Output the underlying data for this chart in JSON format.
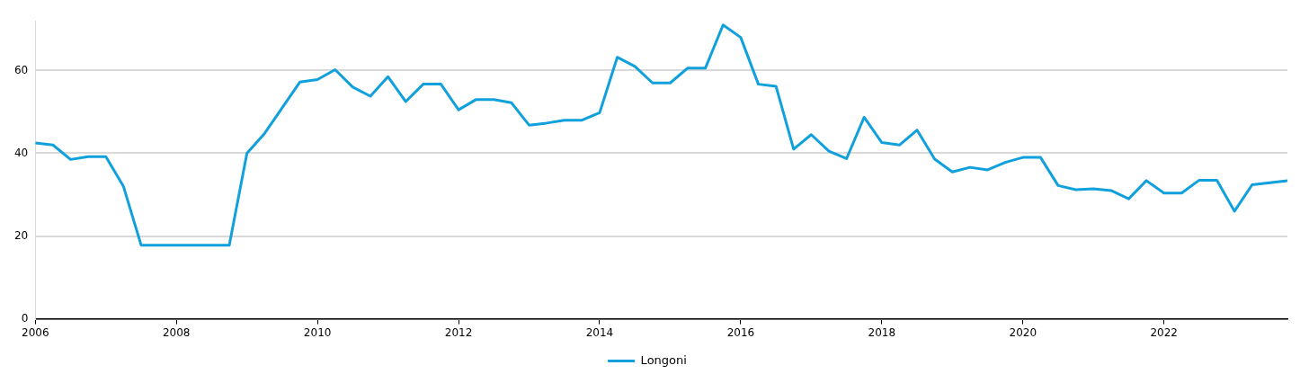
{
  "chart_data": {
    "type": "line",
    "x": [
      2006,
      2006.25,
      2006.5,
      2006.75,
      2007,
      2007.25,
      2007.5,
      2007.75,
      2008,
      2008.25,
      2008.5,
      2008.75,
      2009,
      2009.25,
      2009.5,
      2009.75,
      2010,
      2010.25,
      2010.5,
      2010.75,
      2011,
      2011.25,
      2011.5,
      2011.75,
      2012,
      2012.25,
      2012.5,
      2012.75,
      2013,
      2013.25,
      2013.5,
      2013.75,
      2014,
      2014.25,
      2014.5,
      2014.75,
      2015,
      2015.25,
      2015.5,
      2015.75,
      2016,
      2016.25,
      2016.5,
      2016.75,
      2017,
      2017.25,
      2017.5,
      2017.75,
      2018,
      2018.25,
      2018.5,
      2018.75,
      2019,
      2019.25,
      2019.5,
      2019.75,
      2020,
      2020.25,
      2020.5,
      2020.75,
      2021,
      2021.25,
      2021.5,
      2021.75,
      2022,
      2022.25,
      2022.5,
      2022.75,
      2023,
      2023.25,
      2023.5,
      2023.75
    ],
    "series": [
      {
        "name": "Longoni",
        "color": "#10a1dc",
        "values": [
          42.5,
          42,
          38.5,
          39.2,
          39.2,
          32,
          17.8,
          17.8,
          17.8,
          17.8,
          17.8,
          17.8,
          40,
          44.8,
          51,
          57.2,
          57.8,
          60.2,
          56,
          53.8,
          58.5,
          52.5,
          56.7,
          56.7,
          50.5,
          53,
          53,
          52.2,
          46.8,
          47.3,
          48,
          48,
          49.8,
          63.2,
          61,
          57,
          57,
          60.6,
          60.6,
          71,
          68,
          56.7,
          56.2,
          41,
          44.5,
          40.5,
          38.7,
          48.7,
          42.6,
          42,
          45.6,
          38.6,
          35.5,
          36.6,
          36,
          37.8,
          39,
          39,
          32.2,
          31.2,
          31.4,
          31,
          29,
          33.4,
          30.4,
          30.4,
          33.5,
          33.5,
          26,
          32.4,
          32.9,
          33.4
        ]
      }
    ],
    "xlim": [
      2006,
      2023.75
    ],
    "xticks": [
      2006,
      2008,
      2010,
      2012,
      2014,
      2016,
      2018,
      2020,
      2022
    ],
    "ylim": [
      0,
      72
    ],
    "yticks": [
      0,
      20,
      40,
      60
    ],
    "grid": "y",
    "legend": "bottom",
    "marker": "none",
    "line_style": "solid"
  }
}
